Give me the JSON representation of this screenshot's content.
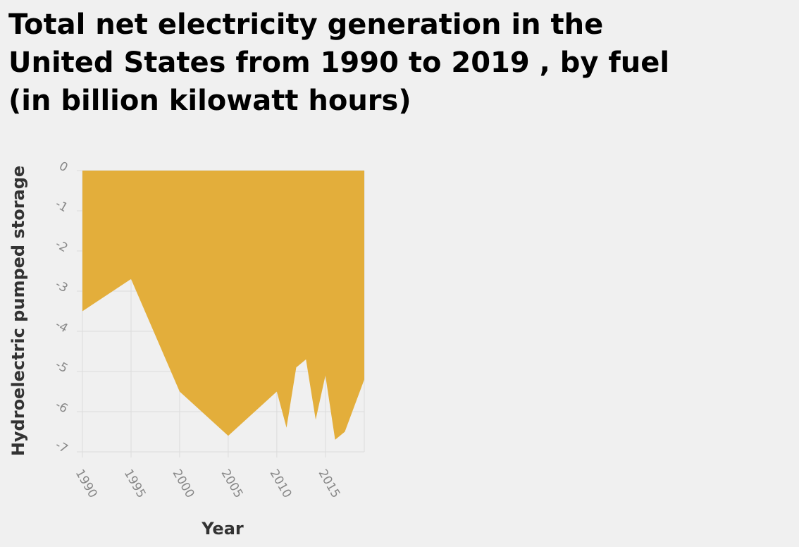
{
  "title_lines": [
    "Total net electricity generation in the",
    "United States from 1990 to 2019 , by fuel",
    "(in billion kilowatt hours)"
  ],
  "chart_data": {
    "type": "area",
    "title": "Total net electricity generation in the United States from 1990 to 2019 , by fuel (in billion kilowatt hours)",
    "xlabel": "Year",
    "ylabel": "Hydroelectric pumped storage",
    "xlim": [
      1990,
      2019
    ],
    "ylim": [
      -7,
      0
    ],
    "x_ticks": [
      "1990",
      "1995",
      "2000",
      "2005",
      "2010",
      "2015"
    ],
    "y_ticks": [
      "0",
      "-1",
      "-2",
      "-3",
      "-4",
      "-5",
      "-6",
      "-7"
    ],
    "grid": true,
    "fill_color": "#e3ae3b",
    "series": [
      {
        "x": [
          1990,
          1995,
          2000,
          2005,
          2010,
          2011,
          2012,
          2013,
          2014,
          2015,
          2016,
          2017,
          2019
        ],
        "values": [
          -3.5,
          -2.7,
          -5.5,
          -6.6,
          -5.5,
          -6.4,
          -4.9,
          -4.7,
          -6.2,
          -5.1,
          -6.7,
          -6.5,
          -5.2
        ]
      }
    ]
  }
}
